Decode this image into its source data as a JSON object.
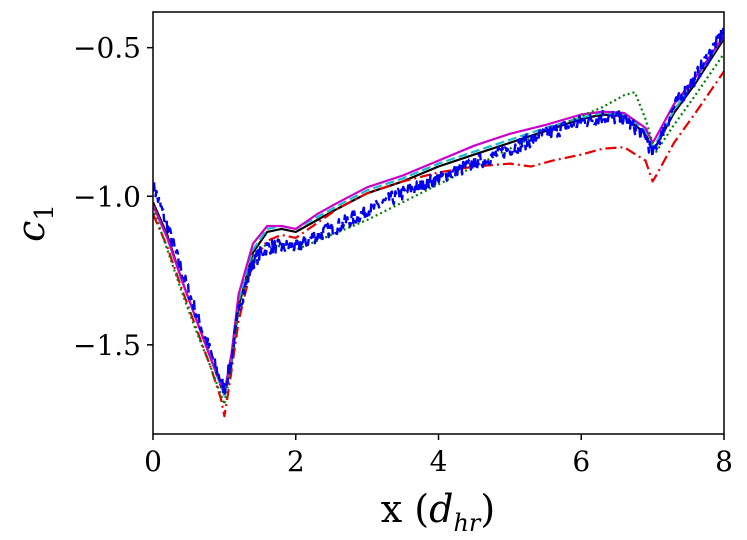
{
  "chart_data": {
    "type": "line",
    "title": "",
    "xlabel": "x (d_hr)",
    "ylabel": "c_1",
    "xlim": [
      0,
      8
    ],
    "ylim": [
      -1.8,
      -0.38
    ],
    "x_ticks": [
      0,
      2,
      4,
      6,
      8
    ],
    "x_tick_labels": [
      "0",
      "2",
      "4",
      "6",
      "8"
    ],
    "y_ticks": [
      -0.5,
      -1.0,
      -1.5
    ],
    "y_tick_labels": [
      "−0.5",
      "−1.0",
      "−1.5"
    ],
    "grid": false,
    "legend": "none",
    "series": [
      {
        "name": "black-solid",
        "color": "#000000",
        "style": "solid",
        "noise": 0,
        "x": [
          0,
          0.2,
          0.4,
          0.6,
          0.8,
          1.0,
          1.1,
          1.2,
          1.4,
          1.6,
          1.8,
          2.0,
          2.3,
          2.6,
          3.0,
          3.5,
          4.0,
          4.5,
          5.0,
          5.5,
          6.0,
          6.3,
          6.6,
          6.9,
          7.0,
          7.05,
          7.3,
          7.6,
          8.0
        ],
        "y": [
          -1.02,
          -1.13,
          -1.28,
          -1.41,
          -1.54,
          -1.67,
          -1.56,
          -1.37,
          -1.19,
          -1.12,
          -1.11,
          -1.12,
          -1.08,
          -1.04,
          -0.99,
          -0.95,
          -0.9,
          -0.86,
          -0.82,
          -0.78,
          -0.74,
          -0.725,
          -0.73,
          -0.79,
          -0.84,
          -0.83,
          -0.72,
          -0.62,
          -0.47
        ]
      },
      {
        "name": "cyan-dashed",
        "color": "#17becf",
        "style": "dashed",
        "noise": 0,
        "x": [
          0,
          0.2,
          0.4,
          0.6,
          0.8,
          1.0,
          1.1,
          1.2,
          1.4,
          1.6,
          1.8,
          2.0,
          2.3,
          2.6,
          3.0,
          3.5,
          4.0,
          4.5,
          5.0,
          5.5,
          6.0,
          6.3,
          6.6,
          6.9,
          7.0,
          7.05,
          7.3,
          7.6,
          8.0
        ],
        "y": [
          -1.03,
          -1.14,
          -1.28,
          -1.41,
          -1.54,
          -1.67,
          -1.55,
          -1.35,
          -1.18,
          -1.11,
          -1.1,
          -1.11,
          -1.07,
          -1.03,
          -0.98,
          -0.94,
          -0.89,
          -0.85,
          -0.81,
          -0.77,
          -0.735,
          -0.72,
          -0.725,
          -0.78,
          -0.83,
          -0.82,
          -0.71,
          -0.61,
          -0.46
        ]
      },
      {
        "name": "magenta-solid",
        "color": "#cc00cc",
        "style": "solid",
        "noise": 0,
        "x": [
          0,
          0.2,
          0.4,
          0.6,
          0.8,
          1.0,
          1.1,
          1.2,
          1.4,
          1.6,
          1.8,
          2.0,
          2.3,
          2.6,
          3.0,
          3.5,
          4.0,
          4.5,
          5.0,
          5.5,
          6.0,
          6.3,
          6.6,
          6.9,
          7.0,
          7.05,
          7.3,
          7.6,
          8.0
        ],
        "y": [
          -1.03,
          -1.14,
          -1.28,
          -1.41,
          -1.54,
          -1.66,
          -1.53,
          -1.33,
          -1.16,
          -1.1,
          -1.1,
          -1.11,
          -1.06,
          -1.02,
          -0.97,
          -0.93,
          -0.88,
          -0.83,
          -0.79,
          -0.76,
          -0.725,
          -0.715,
          -0.72,
          -0.77,
          -0.82,
          -0.8,
          -0.69,
          -0.6,
          -0.46
        ]
      },
      {
        "name": "red-dashdot",
        "color": "#e60000",
        "style": "dashdot",
        "noise": 0,
        "x": [
          0,
          0.2,
          0.4,
          0.6,
          0.8,
          0.95,
          1.0,
          1.08,
          1.2,
          1.4,
          1.6,
          1.8,
          2.0,
          2.3,
          2.6,
          3.0,
          3.5,
          4.0,
          4.5,
          5.0,
          5.3,
          5.6,
          6.0,
          6.3,
          6.6,
          6.9,
          7.0,
          7.05,
          7.3,
          7.6,
          8.0
        ],
        "y": [
          -1.06,
          -1.17,
          -1.31,
          -1.44,
          -1.57,
          -1.68,
          -1.74,
          -1.62,
          -1.42,
          -1.22,
          -1.15,
          -1.13,
          -1.14,
          -1.09,
          -1.04,
          -0.99,
          -0.95,
          -0.92,
          -0.9,
          -0.89,
          -0.9,
          -0.88,
          -0.86,
          -0.84,
          -0.835,
          -0.88,
          -0.95,
          -0.93,
          -0.82,
          -0.72,
          -0.58
        ]
      },
      {
        "name": "green-dotted",
        "color": "#008000",
        "style": "dotted",
        "noise": 0,
        "x": [
          0,
          0.2,
          0.4,
          0.6,
          0.8,
          1.0,
          1.1,
          1.2,
          1.4,
          1.6,
          1.8,
          2.0,
          2.3,
          2.6,
          3.0,
          3.5,
          4.0,
          4.5,
          5.0,
          5.5,
          6.0,
          6.3,
          6.6,
          6.75,
          6.9,
          7.0,
          7.05,
          7.3,
          7.6,
          8.0
        ],
        "y": [
          -1.04,
          -1.18,
          -1.32,
          -1.45,
          -1.57,
          -1.7,
          -1.57,
          -1.38,
          -1.2,
          -1.16,
          -1.17,
          -1.18,
          -1.15,
          -1.12,
          -1.08,
          -1.02,
          -0.96,
          -0.9,
          -0.84,
          -0.78,
          -0.73,
          -0.7,
          -0.66,
          -0.65,
          -0.74,
          -0.82,
          -0.85,
          -0.76,
          -0.66,
          -0.52
        ]
      },
      {
        "name": "blue-dashed-noisy",
        "color": "#0000ee",
        "style": "dashed",
        "noise": 0.025,
        "x": [
          0,
          0.2,
          0.4,
          0.6,
          0.8,
          1.0,
          1.1,
          1.2,
          1.4,
          1.6,
          1.8,
          2.0,
          2.3,
          2.6,
          3.0,
          3.5,
          4.0,
          4.5,
          5.0,
          5.5,
          6.0,
          6.3,
          6.6,
          6.9,
          7.0,
          7.05,
          7.3,
          7.6,
          8.0
        ],
        "y": [
          -0.96,
          -1.1,
          -1.25,
          -1.39,
          -1.52,
          -1.65,
          -1.55,
          -1.38,
          -1.22,
          -1.17,
          -1.17,
          -1.17,
          -1.13,
          -1.1,
          -1.05,
          -0.99,
          -0.94,
          -0.89,
          -0.84,
          -0.79,
          -0.75,
          -0.73,
          -0.74,
          -0.8,
          -0.86,
          -0.83,
          -0.7,
          -0.6,
          -0.44
        ]
      }
    ]
  }
}
